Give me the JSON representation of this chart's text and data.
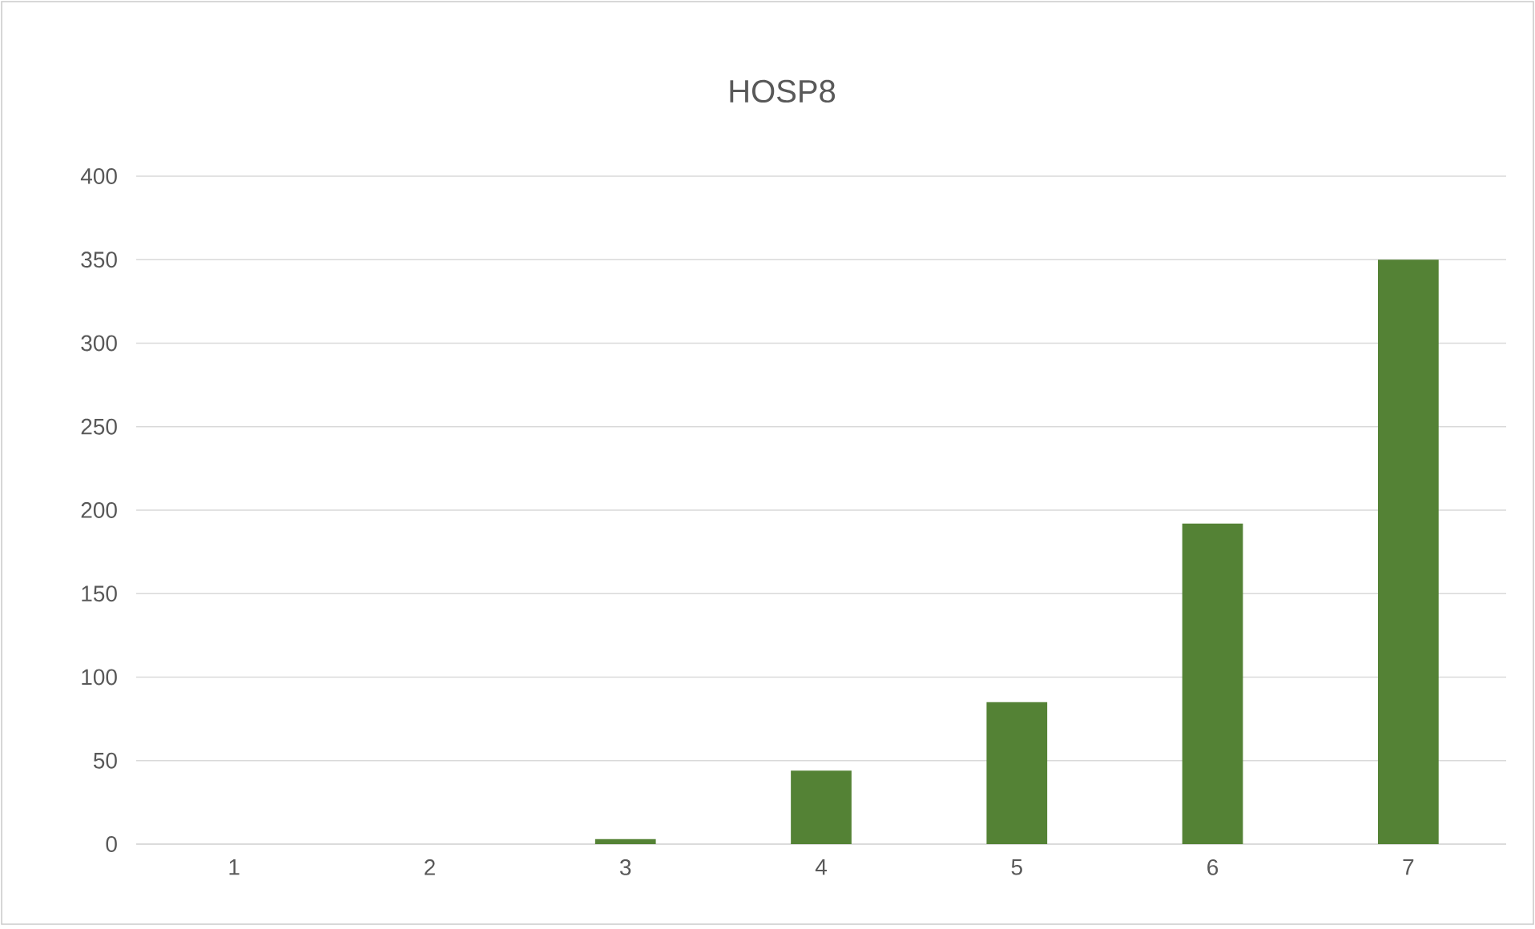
{
  "chart_data": {
    "type": "bar",
    "title": "HOSP8",
    "categories": [
      "1",
      "2",
      "3",
      "4",
      "5",
      "6",
      "7"
    ],
    "values": [
      0,
      0,
      3,
      44,
      85,
      192,
      350
    ],
    "color": "#548235",
    "ylim": [
      0,
      400
    ],
    "yticks": [
      0,
      50,
      100,
      150,
      200,
      250,
      300,
      350,
      400
    ],
    "grid": "y"
  }
}
